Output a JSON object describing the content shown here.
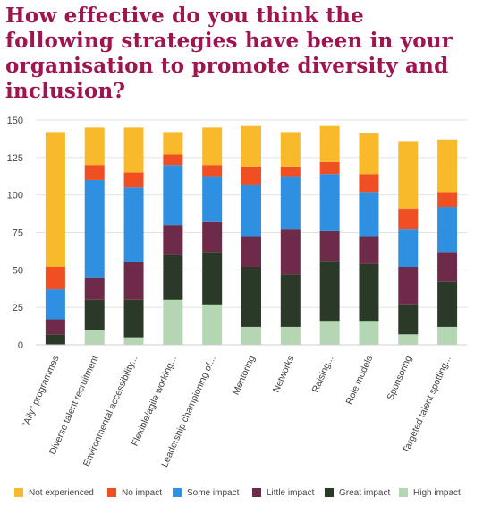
{
  "title": "How effective do you think the following strategies have been in your organisation to promote diversity and inclusion?",
  "chart_data": {
    "type": "bar",
    "stacked": true,
    "categories": [
      "\"Ally\" programmes",
      "Diverse talent recruitment",
      "Environmental accessibility...",
      "Flexible/agile working...",
      "Leadership championing of...",
      "Mentoring",
      "Networks",
      "Raising...",
      "Role models",
      "Sponsoring",
      "Targeted talent spotting..."
    ],
    "ylim": [
      0,
      150
    ],
    "yticks": [
      0,
      25,
      50,
      75,
      100,
      125,
      150
    ],
    "grid": true,
    "legend_position": "bottom",
    "series": [
      {
        "name": "High impact",
        "color": "#b5d6b2",
        "values": [
          0,
          10,
          5,
          30,
          27,
          12,
          12,
          16,
          16,
          7,
          12
        ]
      },
      {
        "name": "Great impact",
        "color": "#2b3a28",
        "values": [
          7,
          20,
          25,
          30,
          35,
          40,
          35,
          40,
          38,
          20,
          30
        ]
      },
      {
        "name": "Little impact",
        "color": "#6e2a49",
        "values": [
          10,
          15,
          25,
          20,
          20,
          20,
          30,
          20,
          18,
          25,
          20
        ]
      },
      {
        "name": "Some impact",
        "color": "#2f8fe0",
        "values": [
          20,
          65,
          50,
          40,
          30,
          35,
          35,
          38,
          30,
          25,
          30
        ]
      },
      {
        "name": "No impact",
        "color": "#f04e23",
        "values": [
          15,
          10,
          10,
          7,
          8,
          12,
          7,
          8,
          12,
          14,
          10
        ]
      },
      {
        "name": "Not experienced",
        "color": "#f8b92b",
        "values": [
          90,
          25,
          30,
          15,
          25,
          27,
          23,
          24,
          27,
          45,
          35
        ]
      }
    ],
    "legend_order": [
      "Not experienced",
      "No impact",
      "Some impact",
      "Little impact",
      "Great impact",
      "High impact"
    ]
  }
}
